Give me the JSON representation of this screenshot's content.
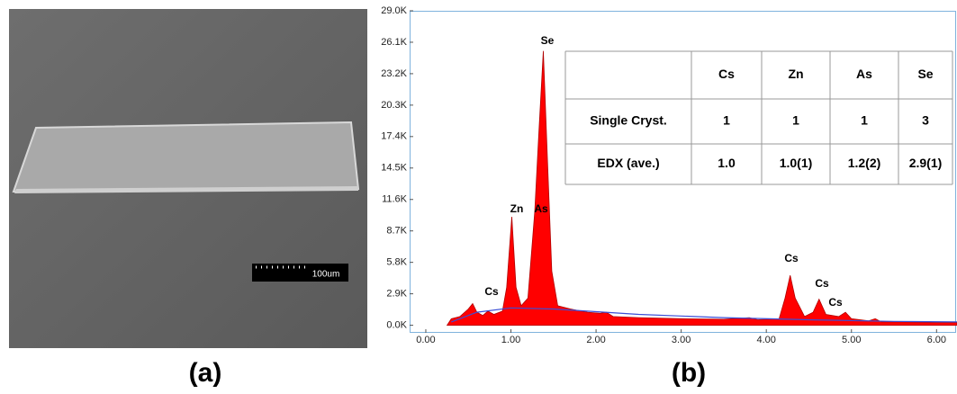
{
  "panels": {
    "a": "(a)",
    "b": "(b)"
  },
  "scale_bar": "100um",
  "table": {
    "columns": [
      "Cs",
      "Zn",
      "As",
      "Se"
    ],
    "rows": [
      {
        "label": "Single Cryst.",
        "cells": [
          "1",
          "1",
          "1",
          "3"
        ]
      },
      {
        "label": "EDX (ave.)",
        "cells": [
          "1.0",
          "1.0(1)",
          "1.2(2)",
          "2.9(1)"
        ]
      }
    ]
  },
  "chart_data": {
    "type": "area",
    "x": [
      0.25,
      0.3,
      0.4,
      0.5,
      0.55,
      0.6,
      0.67,
      0.73,
      0.8,
      0.9,
      0.95,
      1.01,
      1.06,
      1.12,
      1.2,
      1.28,
      1.33,
      1.38,
      1.43,
      1.48,
      1.55,
      1.7,
      1.9,
      2.05,
      2.12,
      2.2,
      2.5,
      3.0,
      3.5,
      3.8,
      3.9,
      4.15,
      4.22,
      4.28,
      4.34,
      4.45,
      4.55,
      4.62,
      4.7,
      4.85,
      4.93,
      5.0,
      5.2,
      5.28,
      5.35,
      5.6,
      6.0,
      6.24
    ],
    "values": [
      0,
      600,
      800,
      1500,
      2000,
      1200,
      900,
      1300,
      1000,
      1300,
      3500,
      10000,
      3500,
      1800,
      2500,
      10500,
      18000,
      25300,
      15000,
      5000,
      1800,
      1500,
      1200,
      1100,
      1200,
      800,
      700,
      600,
      550,
      700,
      500,
      600,
      2500,
      4600,
      2500,
      800,
      1200,
      2400,
      1000,
      800,
      1200,
      600,
      400,
      600,
      300,
      300,
      250,
      250
    ],
    "color": "#ff0000",
    "background": {
      "x": [
        0.3,
        0.6,
        1.0,
        1.5,
        2.5,
        3.5,
        4.5,
        5.5,
        6.24
      ],
      "values": [
        300,
        1200,
        1600,
        1500,
        1000,
        700,
        500,
        350,
        300
      ],
      "color": "#3b4fd6"
    },
    "annotations": [
      "Se",
      "Zn",
      "As",
      "Cs",
      "Cs",
      "Cs",
      "Cs"
    ],
    "xlim": [
      -0.19,
      6.24
    ],
    "ylim": [
      -700,
      29000
    ],
    "xticks": [
      {
        "value": 0,
        "label": "0.00"
      },
      {
        "value": 1,
        "label": "1.00"
      },
      {
        "value": 2,
        "label": "2.00"
      },
      {
        "value": 3,
        "label": "3.00"
      },
      {
        "value": 4,
        "label": "4.00"
      },
      {
        "value": 5,
        "label": "5.00"
      },
      {
        "value": 6,
        "label": "6.00"
      }
    ],
    "yticks": [
      {
        "value": 0,
        "label": "0.0K"
      },
      {
        "value": 2900,
        "label": "2.9K"
      },
      {
        "value": 5800,
        "label": "5.8K"
      },
      {
        "value": 8700,
        "label": "8.7K"
      },
      {
        "value": 11600,
        "label": "11.6K"
      },
      {
        "value": 14500,
        "label": "14.5K"
      },
      {
        "value": 17400,
        "label": "17.4K"
      },
      {
        "value": 20300,
        "label": "20.3K"
      },
      {
        "value": 23200,
        "label": "23.2K"
      },
      {
        "value": 26100,
        "label": "26.1K"
      },
      {
        "value": 29000,
        "label": "29.0K"
      }
    ]
  }
}
